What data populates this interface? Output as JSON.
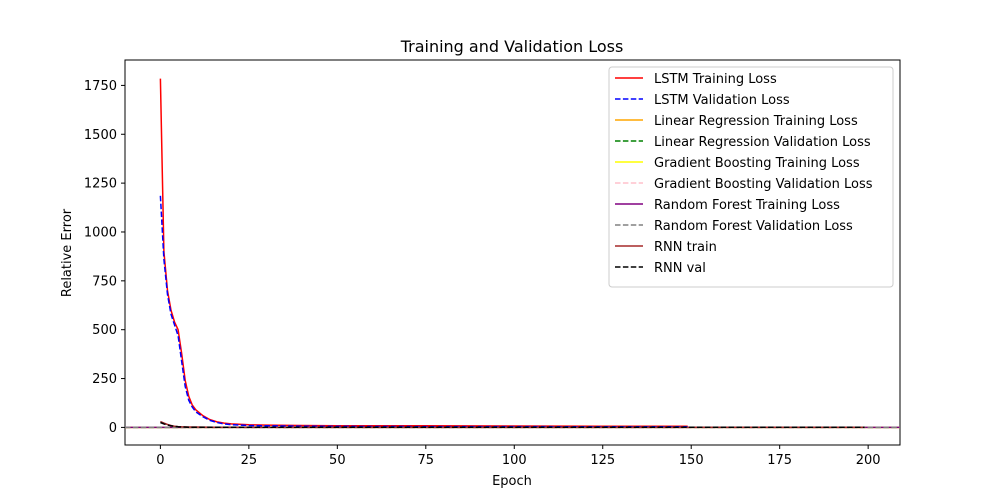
{
  "chart_data": {
    "type": "line",
    "title": "Training and Validation Loss",
    "xlabel": "Epoch",
    "ylabel": "Relative Error",
    "xlim": [
      -10,
      209
    ],
    "ylim": [
      -90,
      1880
    ],
    "xticks": [
      0,
      25,
      50,
      75,
      100,
      125,
      150,
      175,
      200
    ],
    "yticks": [
      0,
      250,
      500,
      750,
      1000,
      1250,
      1500,
      1750
    ],
    "grid": false,
    "legend_position": "top-right",
    "series": [
      {
        "name": "LSTM Training Loss",
        "color": "#ff0000",
        "style": "solid",
        "x": [
          0,
          1,
          2,
          3,
          4,
          5,
          6,
          7,
          8,
          9,
          10,
          12,
          14,
          16,
          18,
          20,
          25,
          30,
          40,
          50,
          75,
          100,
          125,
          149
        ],
        "y": [
          1785,
          900,
          700,
          600,
          540,
          500,
          380,
          240,
          160,
          115,
          90,
          60,
          40,
          28,
          22,
          18,
          14,
          12,
          10,
          9,
          8,
          7,
          6,
          6
        ]
      },
      {
        "name": "LSTM Validation Loss",
        "color": "#0000ff",
        "style": "dashed",
        "x": [
          0,
          1,
          2,
          3,
          4,
          5,
          6,
          7,
          8,
          9,
          10,
          12,
          14,
          16,
          18,
          20,
          25,
          30,
          40,
          50,
          75,
          100,
          125,
          149
        ],
        "y": [
          1185,
          860,
          680,
          580,
          525,
          470,
          340,
          210,
          140,
          105,
          80,
          55,
          36,
          25,
          18,
          14,
          10,
          8,
          6,
          5,
          4,
          4,
          3,
          3
        ]
      },
      {
        "name": "Linear Regression Training Loss",
        "color": "#ffa500",
        "style": "solid",
        "x": [
          -10,
          209
        ],
        "y": [
          0,
          0
        ]
      },
      {
        "name": "Linear Regression Validation Loss",
        "color": "#008000",
        "style": "dashed",
        "x": [
          -10,
          209
        ],
        "y": [
          0,
          0
        ]
      },
      {
        "name": "Gradient Boosting Training Loss",
        "color": "#ffff00",
        "style": "solid",
        "x": [
          -10,
          209
        ],
        "y": [
          0,
          0
        ]
      },
      {
        "name": "Gradient Boosting Validation Loss",
        "color": "#ffc0cb",
        "style": "dashed",
        "x": [
          -10,
          209
        ],
        "y": [
          0,
          0
        ]
      },
      {
        "name": "Random Forest Training Loss",
        "color": "#800080",
        "style": "solid",
        "x": [
          -10,
          209
        ],
        "y": [
          0,
          0
        ]
      },
      {
        "name": "Random Forest Validation Loss",
        "color": "#808080",
        "style": "dashed",
        "x": [
          -10,
          209
        ],
        "y": [
          0,
          0
        ]
      },
      {
        "name": "RNN train",
        "color": "#a52a2a",
        "style": "solid",
        "x": [
          0,
          1,
          2,
          3,
          4,
          5,
          6,
          8,
          10,
          15,
          20,
          50,
          100,
          150,
          199
        ],
        "y": [
          30,
          22,
          15,
          10,
          6,
          4,
          3,
          2,
          2,
          1,
          1,
          1,
          1,
          1,
          1
        ]
      },
      {
        "name": "RNN val",
        "color": "#000000",
        "style": "dashed",
        "x": [
          0,
          1,
          2,
          3,
          4,
          5,
          6,
          8,
          10,
          15,
          20,
          50,
          100,
          150,
          199
        ],
        "y": [
          25,
          18,
          12,
          8,
          5,
          3,
          2,
          1,
          1,
          1,
          1,
          1,
          1,
          1,
          1
        ]
      }
    ]
  }
}
